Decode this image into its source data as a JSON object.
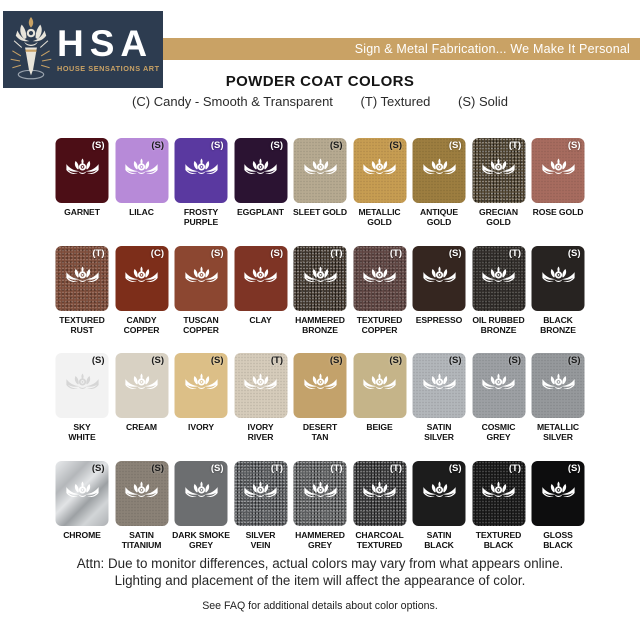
{
  "colors": {
    "navy": "#2d3c50",
    "gold": "#c9a265"
  },
  "header": {
    "logo": {
      "acronym": "HSA",
      "subtitle": "HOUSE SENSATIONS ART",
      "emblem_icon": "lotus-torch-icon"
    },
    "banner": {
      "text": "Sign & Metal Fabrication... We Make It Personal",
      "bg_color": "#c9a265",
      "text_color": "#ffffff"
    }
  },
  "title": "POWDER COAT COLORS",
  "legend": {
    "items": [
      {
        "code": "(C)",
        "label": "Candy - Smooth & Transparent"
      },
      {
        "code": "(T)",
        "label": "Textured"
      },
      {
        "code": "(S)",
        "label": "Solid"
      }
    ]
  },
  "swatches": [
    {
      "label": "GARNET",
      "code": "S",
      "color": "#4c0e16",
      "code_color": "light",
      "finish": "solid",
      "lotus": "white"
    },
    {
      "label": "LILAC",
      "code": "S",
      "color": "#b78ad8",
      "code_color": "dark",
      "finish": "solid",
      "lotus": "white"
    },
    {
      "label": "FROSTY\nPURPLE",
      "code": "S",
      "color": "#5a39a0",
      "code_color": "light",
      "finish": "solid",
      "lotus": "white"
    },
    {
      "label": "EGGPLANT",
      "code": "S",
      "color": "#2b1332",
      "code_color": "light",
      "finish": "solid",
      "lotus": "white"
    },
    {
      "label": "SLEET GOLD",
      "code": "S",
      "color": "#b7aa91",
      "code_color": "dark",
      "finish": "subtle",
      "lotus": "white"
    },
    {
      "label": "METALLIC\nGOLD",
      "code": "S",
      "color": "#c79d52",
      "code_color": "dark",
      "finish": "subtle",
      "lotus": "white"
    },
    {
      "label": "ANTIQUE\nGOLD",
      "code": "S",
      "color": "#9d7e40",
      "code_color": "light",
      "finish": "subtle",
      "lotus": "white"
    },
    {
      "label": "GRECIAN\nGOLD",
      "code": "T",
      "color": "#4a3e2a",
      "code_color": "light",
      "finish": "speckle-strong",
      "lotus": "white"
    },
    {
      "label": "ROSE GOLD",
      "code": "S",
      "color": "#a76c5f",
      "code_color": "light",
      "finish": "subtle",
      "lotus": "white"
    },
    {
      "label": "TEXTURED\nRUST",
      "code": "T",
      "color": "#7c4b39",
      "code_color": "light",
      "finish": "speckle",
      "lotus": "white"
    },
    {
      "label": "CANDY\nCOPPER",
      "code": "C",
      "color": "#7d2e1a",
      "code_color": "light",
      "finish": "solid",
      "lotus": "white"
    },
    {
      "label": "TUSCAN\nCOPPER",
      "code": "S",
      "color": "#8c4731",
      "code_color": "light",
      "finish": "solid",
      "lotus": "white"
    },
    {
      "label": "CLAY",
      "code": "S",
      "color": "#7e3425",
      "code_color": "light",
      "finish": "solid",
      "lotus": "white"
    },
    {
      "label": "HAMMERED\nBRONZE",
      "code": "T",
      "color": "#3b3026",
      "code_color": "light",
      "finish": "speckle-strong",
      "lotus": "white"
    },
    {
      "label": "TEXTURED\nCOPPER",
      "code": "T",
      "color": "#5d4340",
      "code_color": "light",
      "finish": "speckle",
      "lotus": "white"
    },
    {
      "label": "ESPRESSO",
      "code": "S",
      "color": "#352620",
      "code_color": "light",
      "finish": "solid",
      "lotus": "white"
    },
    {
      "label": "OIL RUBBED\nBRONZE",
      "code": "T",
      "color": "#2e2a27",
      "code_color": "light",
      "finish": "speckle",
      "lotus": "white"
    },
    {
      "label": "BLACK\nBRONZE",
      "code": "S",
      "color": "#272321",
      "code_color": "light",
      "finish": "solid",
      "lotus": "white"
    },
    {
      "label": "SKY\nWHITE",
      "code": "S",
      "color": "#f2f2f2",
      "code_color": "dark",
      "finish": "solid",
      "lotus": "faint"
    },
    {
      "label": "CREAM",
      "code": "S",
      "color": "#d8d1c3",
      "code_color": "dark",
      "finish": "solid",
      "lotus": "white"
    },
    {
      "label": "IVORY",
      "code": "S",
      "color": "#dcbf87",
      "code_color": "dark",
      "finish": "solid",
      "lotus": "white"
    },
    {
      "label": "IVORY\nRIVER",
      "code": "T",
      "color": "#d6ccbb",
      "code_color": "dark",
      "finish": "subtle",
      "lotus": "white"
    },
    {
      "label": "DESERT\nTAN",
      "code": "S",
      "color": "#c3a26b",
      "code_color": "dark",
      "finish": "solid",
      "lotus": "white"
    },
    {
      "label": "BEIGE",
      "code": "S",
      "color": "#c5b489",
      "code_color": "dark",
      "finish": "solid",
      "lotus": "white"
    },
    {
      "label": "SATIN\nSILVER",
      "code": "S",
      "color": "#b3b7bb",
      "code_color": "dark",
      "finish": "subtle",
      "lotus": "white"
    },
    {
      "label": "COSMIC\nGREY",
      "code": "S",
      "color": "#9da0a4",
      "code_color": "dark",
      "finish": "subtle",
      "lotus": "white"
    },
    {
      "label": "METALLIC\nSILVER",
      "code": "S",
      "color": "#96999c",
      "code_color": "dark",
      "finish": "subtle",
      "lotus": "white"
    },
    {
      "label": "CHROME",
      "code": "S",
      "color": "#c9cbcd",
      "code_color": "dark",
      "finish": "chrome",
      "lotus": "white"
    },
    {
      "label": "SATIN\nTITANIUM",
      "code": "S",
      "color": "#8b8277",
      "code_color": "dark",
      "finish": "subtle",
      "lotus": "white"
    },
    {
      "label": "DARK SMOKE\nGREY",
      "code": "S",
      "color": "#6c6e70",
      "code_color": "light",
      "finish": "solid",
      "lotus": "white"
    },
    {
      "label": "SILVER\nVEIN",
      "code": "T",
      "color": "#54575a",
      "code_color": "light",
      "finish": "speckle-strong",
      "lotus": "white"
    },
    {
      "label": "HAMMERED\nGREY",
      "code": "T",
      "color": "#5a5c5e",
      "code_color": "light",
      "finish": "speckle-strong",
      "lotus": "white"
    },
    {
      "label": "CHARCOAL\nTEXTURED",
      "code": "T",
      "color": "#2f2f30",
      "code_color": "light",
      "finish": "speckle-strong",
      "lotus": "white"
    },
    {
      "label": "SATIN\nBLACK",
      "code": "S",
      "color": "#1c1c1c",
      "code_color": "light",
      "finish": "solid",
      "lotus": "white"
    },
    {
      "label": "TEXTURED\nBLACK",
      "code": "T",
      "color": "#161616",
      "code_color": "light",
      "finish": "speckle",
      "lotus": "white"
    },
    {
      "label": "GLOSS\nBLACK",
      "code": "S",
      "color": "#0d0d0e",
      "code_color": "light",
      "finish": "solid",
      "lotus": "white"
    }
  ],
  "footer": {
    "attn_line1": "Attn: Due to monitor differences, actual colors may vary from what appears online.",
    "attn_line2": "Lighting and placement of the item will affect the appearance of color.",
    "faq": "See FAQ for additional details about color options."
  }
}
